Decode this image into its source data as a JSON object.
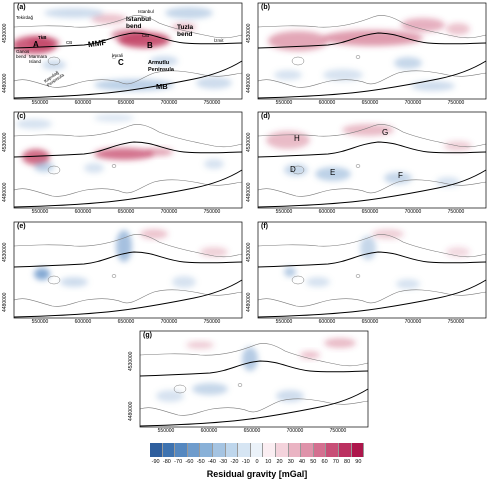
{
  "panels": [
    {
      "tag": "(a)",
      "y_ticks": [
        "4530000",
        "4480000"
      ],
      "x_ticks": [
        "550000",
        "600000",
        "650000",
        "700000",
        "750000"
      ],
      "labels": {
        "tekirdag": "Tekirdağ",
        "istanbul": "Istanbul",
        "istanbul_bend": "Istanbul\nbend",
        "tuzla_bend": "Tuzla\nbend",
        "izmit": "İzmit",
        "tkb": "TkB",
        "cb": "CB",
        "cib": "CiB",
        "mmf": "MMF",
        "imrali": "İmrali",
        "ganos_bend": "Ganos\nbend",
        "marmara_island": "Marmara\nIsland",
        "kapidag": "Kapıdağ\nPeninsula",
        "armutlu": "Armutlu\nPeninsula",
        "mb": "MB",
        "a": "A",
        "b": "B",
        "c": "C"
      }
    },
    {
      "tag": "(b)",
      "y_ticks": [
        "4530000",
        "4480000"
      ],
      "x_ticks": [
        "550000",
        "600000",
        "650000",
        "700000",
        "750000"
      ],
      "labels": {}
    },
    {
      "tag": "(c)",
      "y_ticks": [
        "4530000",
        "4480000"
      ],
      "x_ticks": [
        "550000",
        "600000",
        "650000",
        "700000",
        "750000"
      ],
      "labels": {}
    },
    {
      "tag": "(d)",
      "y_ticks": [
        "4530000",
        "4480000"
      ],
      "x_ticks": [
        "550000",
        "600000",
        "650000",
        "700000",
        "750000"
      ],
      "labels": {
        "h": "H",
        "g": "G",
        "d": "D",
        "e": "E",
        "f": "F"
      }
    },
    {
      "tag": "(e)",
      "y_ticks": [
        "4530000",
        "4480000"
      ],
      "x_ticks": [
        "550000",
        "600000",
        "650000",
        "700000",
        "750000"
      ],
      "labels": {}
    },
    {
      "tag": "(f)",
      "y_ticks": [
        "4530000",
        "4480000"
      ],
      "x_ticks": [
        "550000",
        "600000",
        "650000",
        "700000",
        "750000"
      ],
      "labels": {}
    },
    {
      "tag": "(g)",
      "y_ticks": [
        "4530000",
        "4480000"
      ],
      "x_ticks": [
        "550000",
        "600000",
        "650000",
        "700000",
        "750000"
      ],
      "labels": {}
    }
  ],
  "colorbar": {
    "title": "Residual gravity [mGal]",
    "ticks": [
      "-90",
      "-80",
      "-70",
      "-60",
      "-50",
      "-40",
      "-30",
      "-20",
      "-10",
      "0",
      "10",
      "20",
      "30",
      "40",
      "50",
      "60",
      "70",
      "80",
      "90"
    ],
    "colors": [
      "#2f5f9e",
      "#3e73b0",
      "#5588c0",
      "#6f9ccc",
      "#89b1d8",
      "#a5c4e2",
      "#bed6ec",
      "#d6e5f3",
      "#ebf2f9",
      "#fbeef2",
      "#f4d3dc",
      "#eab4c3",
      "#df93aa",
      "#d47090",
      "#c84f77",
      "#bb3060",
      "#ad164b"
    ],
    "negative_color": "#5b8cc4",
    "positive_color": "#c0395e",
    "coast_color": "#7a7a7a",
    "fault_color": "#000000"
  }
}
